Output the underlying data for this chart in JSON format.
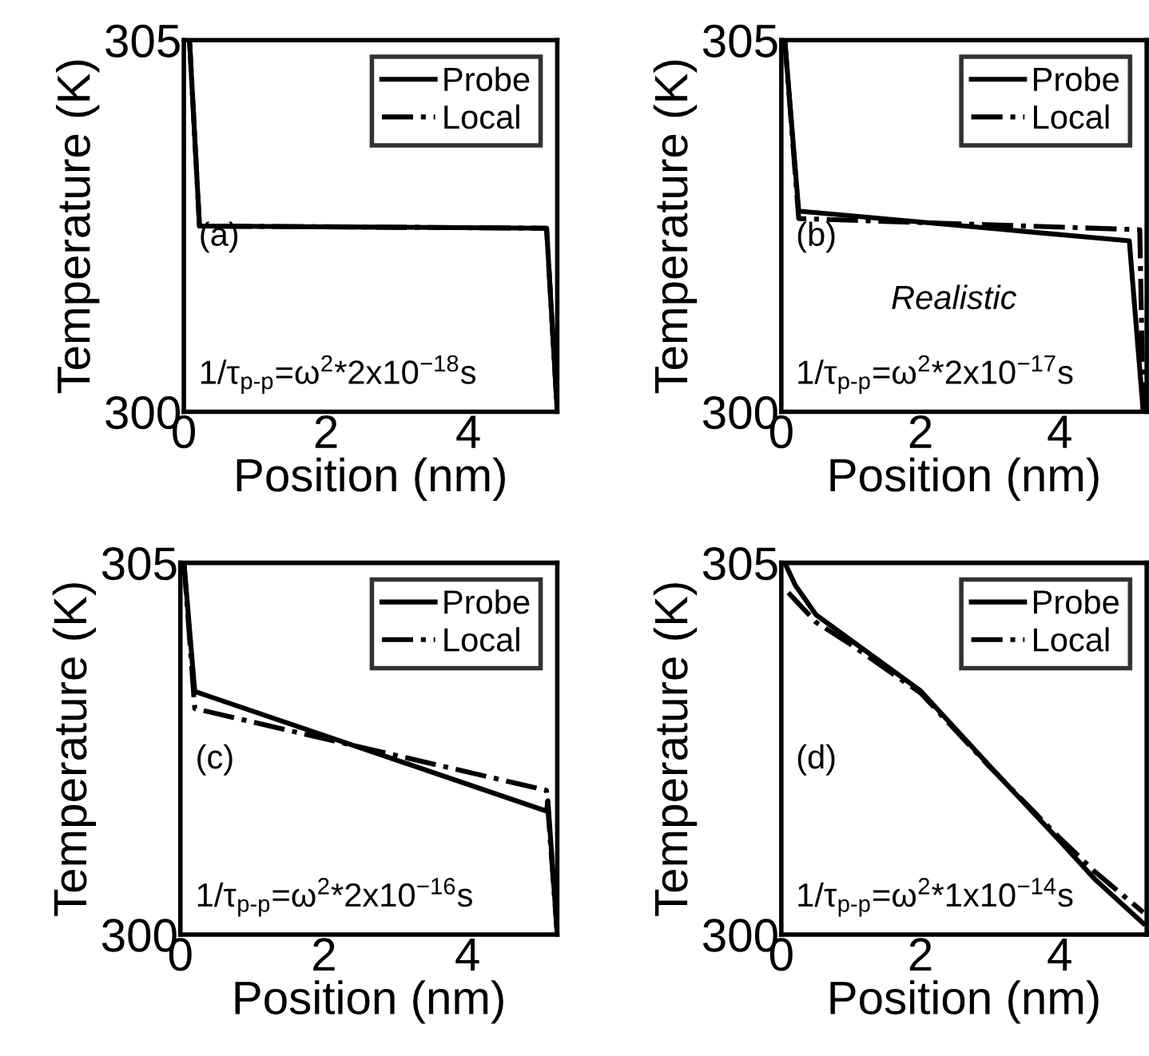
{
  "chart_data": [
    {
      "type": "line",
      "xlabel": "Position (nm)",
      "ylabel": "Temperature (K)",
      "xlim": [
        0,
        5.25
      ],
      "ylim": [
        300,
        305
      ],
      "xticks": [
        0,
        2,
        4
      ],
      "yticks": [
        300,
        305
      ],
      "legend": "top right",
      "grid": false,
      "annotations": [
        "(a)",
        "1/τ$_{p-p}$=ω$^{2}$*2x10$^{−18}$s"
      ],
      "series": [
        {
          "name": "Probe",
          "color": "#000000",
          "line_style": "solid",
          "x": [
            0.08,
            0.22,
            5.1,
            5.25
          ],
          "values": [
            305,
            302.5,
            302.47,
            300
          ]
        },
        {
          "name": "Local",
          "color": "#000000",
          "line_style": "dashdot",
          "x": [
            0.08,
            0.22,
            5.1,
            5.25
          ],
          "values": [
            305,
            302.5,
            302.47,
            300
          ]
        }
      ]
    },
    {
      "type": "line",
      "xlabel": "Position (nm)",
      "ylabel": "Temperature (K)",
      "xlim": [
        0,
        5.25
      ],
      "ylim": [
        300,
        305
      ],
      "xticks": [
        0,
        2,
        4
      ],
      "yticks": [
        300,
        305
      ],
      "legend": "top right",
      "grid": false,
      "annotations": [
        "(b)",
        "Realistic",
        "1/τ$_{p-p}$=ω$^{2}$*2x10$^{−17}$s"
      ],
      "series": [
        {
          "name": "Probe",
          "color": "#000000",
          "line_style": "solid",
          "x": [
            0.05,
            0.25,
            5.0,
            5.2
          ],
          "values": [
            305,
            302.7,
            302.3,
            300
          ]
        },
        {
          "name": "Local",
          "color": "#000000",
          "line_style": "dashdot",
          "x": [
            0.05,
            0.25,
            5.15,
            5.2
          ],
          "values": [
            305,
            302.6,
            302.45,
            300
          ]
        }
      ]
    },
    {
      "type": "line",
      "xlabel": "Position (nm)",
      "ylabel": "Temperature (K)",
      "xlim": [
        0,
        5.25
      ],
      "ylim": [
        300,
        305
      ],
      "xticks": [
        0,
        2,
        4
      ],
      "yticks": [
        300,
        305
      ],
      "legend": "top right",
      "grid": false,
      "annotations": [
        "(c)",
        "1/τ$_{p-p}$=ω$^{2}$*2x10$^{−16}$s"
      ],
      "series": [
        {
          "name": "Probe",
          "color": "#000000",
          "line_style": "solid",
          "x": [
            0.05,
            0.2,
            5.1,
            5.12,
            5.25
          ],
          "values": [
            305,
            303.27,
            301.66,
            301.8,
            300
          ]
        },
        {
          "name": "Local",
          "color": "#000000",
          "line_style": "dashdot",
          "x": [
            0.05,
            0.2,
            5.1,
            5.25
          ],
          "values": [
            305,
            303.04,
            301.94,
            300
          ]
        }
      ]
    },
    {
      "type": "line",
      "xlabel": "Position (nm)",
      "ylabel": "Temperature (K)",
      "xlim": [
        0,
        5.25
      ],
      "ylim": [
        300,
        305
      ],
      "xticks": [
        0,
        2,
        4
      ],
      "yticks": [
        300,
        305
      ],
      "legend": "top right",
      "grid": false,
      "annotations": [
        "(d)",
        "1/τ$_{p-p}$=ω$^{2}$*1x10$^{−14}$s"
      ],
      "series": [
        {
          "name": "Probe",
          "color": "#000000",
          "line_style": "solid",
          "x": [
            0.05,
            0.2,
            0.5,
            1,
            2,
            3,
            4,
            4.5,
            5.2
          ],
          "values": [
            305,
            304.7,
            304.3,
            303.96,
            303.28,
            302.26,
            301.26,
            300.75,
            300.15
          ]
        },
        {
          "name": "Local",
          "color": "#000000",
          "line_style": "dashdot",
          "x": [
            0.1,
            0.5,
            1,
            2,
            3,
            4,
            4.5,
            5.2
          ],
          "values": [
            304.6,
            304.2,
            303.9,
            303.25,
            302.25,
            301.3,
            300.85,
            300.3
          ]
        }
      ]
    }
  ]
}
